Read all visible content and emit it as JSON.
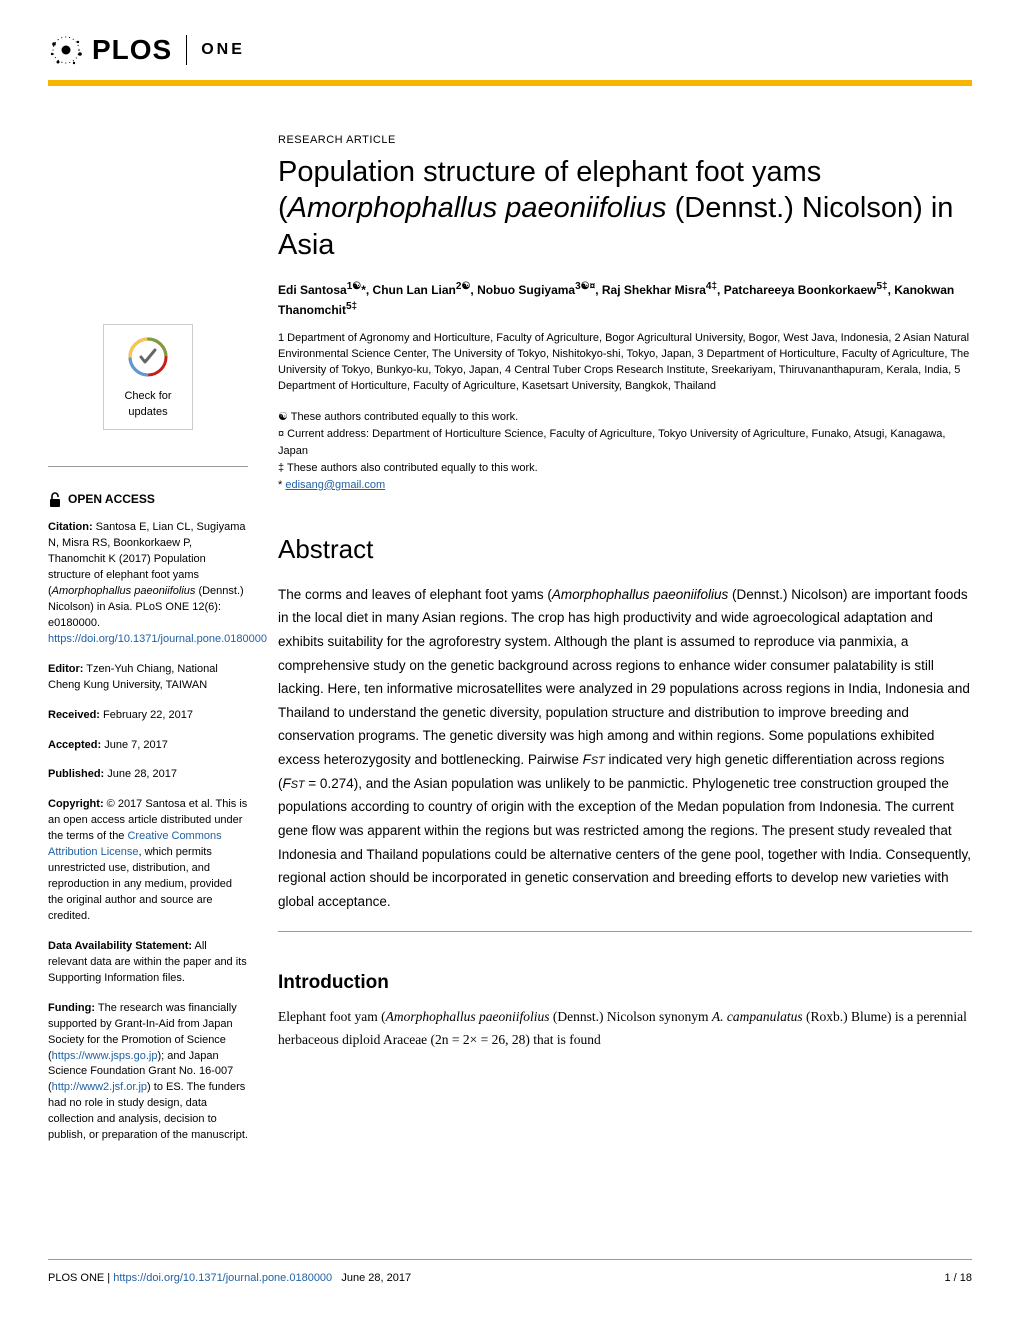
{
  "journal": {
    "name": "PLOS",
    "sub": "ONE"
  },
  "article": {
    "type": "RESEARCH ARTICLE",
    "title_line1": "Population structure of elephant foot yams",
    "title_line2_pre": "(",
    "title_line2_species": "Amorphophallus paeoniifolius",
    "title_line2_post": " (Dennst.) Nicolson) in Asia",
    "authors_html": "Edi Santosa<sup>1☯</sup>*, Chun Lan Lian<sup>2☯</sup>, Nobuo Sugiyama<sup>3☯¤</sup>, Raj Shekhar Misra<sup>4‡</sup>, Patchareeya Boonkorkaew<sup>5‡</sup>, Kanokwan Thanomchit<sup>5‡</sup>",
    "affiliations": "1 Department of Agronomy and Horticulture, Faculty of Agriculture, Bogor Agricultural University, Bogor, West Java, Indonesia, 2 Asian Natural Environmental Science Center, The University of Tokyo, Nishitokyo-shi, Tokyo, Japan, 3 Department of Horticulture, Faculty of Agriculture, The University of Tokyo, Bunkyo-ku, Tokyo, Japan, 4 Central Tuber Crops Research Institute, Sreekariyam, Thiruvananthapuram, Kerala, India, 5 Department of Horticulture, Faculty of Agriculture, Kasetsart University, Bangkok, Thailand",
    "note_equal1": "☯ These authors contributed equally to this work.",
    "note_current": "¤ Current address: Department of Horticulture Science, Faculty of Agriculture, Tokyo University of Agriculture, Funako, Atsugi, Kanagawa, Japan",
    "note_equal2": "‡ These authors also contributed equally to this work.",
    "email": "edisang@gmail.com",
    "abstract_heading": "Abstract",
    "abstract_pre": "The corms and leaves of elephant foot yams (",
    "abstract_species": "Amorphophallus paeoniifolius",
    "abstract_mid1": " (Dennst.) Nicolson) are important foods in the local diet in many Asian regions. The crop has high productivity and wide agroecological adaptation and exhibits suitability for the agroforestry system. Although the plant is assumed to reproduce via panmixia, a comprehensive study on the genetic background across regions to enhance wider consumer palatability is still lacking. Here, ten informative microsatellites were analyzed in 29 populations across regions in India, Indonesia and Thailand to understand the genetic diversity, population structure and distribution to improve breeding and conservation programs. The genetic diversity was high among and within regions. Some populations exhibited excess heterozygosity and bottlenecking. Pairwise ",
    "abstract_fst1": "F",
    "abstract_fst1sub": "ST",
    "abstract_mid2": " indicated very high genetic differentiation across regions (",
    "abstract_fst2": "F",
    "abstract_fst2sub": "ST",
    "abstract_mid3": " = 0.274), and the Asian population was unlikely to be panmictic. Phylogenetic tree construction grouped the populations according to country of origin with the exception of the Medan population from Indonesia. The current gene flow was apparent within the regions but was restricted among the regions. The present study revealed that Indonesia and Thailand populations could be alternative centers of the gene pool, together with India. Consequently, regional action should be incorporated in genetic conservation and breeding efforts to develop new varieties with global acceptance.",
    "intro_heading": "Introduction",
    "intro_pre": "Elephant foot yam (",
    "intro_species1": "Amorphophallus paeoniifolius",
    "intro_mid1": " (Dennst.) Nicolson synonym ",
    "intro_species2": "A. campanulatus",
    "intro_post": " (Roxb.) Blume) is a perennial herbaceous diploid Araceae (2n = 2× = 26, 28) that is found"
  },
  "sidebar": {
    "check_updates_line1": "Check for",
    "check_updates_line2": "updates",
    "open_access": "OPEN ACCESS",
    "citation_label": "Citation:",
    "citation_text_pre": " Santosa E, Lian CL, Sugiyama N, Misra RS, Boonkorkaew P, Thanomchit K (2017) Population structure of elephant foot yams (",
    "citation_species": "Amorphophallus paeoniifolius",
    "citation_text_post": " (Dennst.) Nicolson) in Asia. PLoS ONE 12(6): e0180000. ",
    "citation_doi": "https://doi.org/10.1371/journal.pone.0180000",
    "editor_label": "Editor:",
    "editor_text": " Tzen-Yuh Chiang, National Cheng Kung University, TAIWAN",
    "received_label": "Received:",
    "received_text": " February 22, 2017",
    "accepted_label": "Accepted:",
    "accepted_text": " June 7, 2017",
    "published_label": "Published:",
    "published_text": " June 28, 2017",
    "copyright_label": "Copyright:",
    "copyright_pre": " © 2017 Santosa et al. This is an open access article distributed under the terms of the ",
    "copyright_link": "Creative Commons Attribution License",
    "copyright_post": ", which permits unrestricted use, distribution, and reproduction in any medium, provided the original author and source are credited.",
    "data_label": "Data Availability Statement:",
    "data_text": " All relevant data are within the paper and its Supporting Information files.",
    "funding_label": "Funding:",
    "funding_pre": " The research was financially supported by Grant-In-Aid from Japan Society for the Promotion of Science (",
    "funding_link1": "https://www.jsps.go.jp",
    "funding_mid": "); and Japan Science Foundation Grant No. 16-007 (",
    "funding_link2": "http://www2.jsf.or.jp",
    "funding_post": ") to ES. The funders had no role in study design, data collection and analysis, decision to publish, or preparation of the manuscript."
  },
  "footer": {
    "journal": "PLOS ONE | ",
    "doi": "https://doi.org/10.1371/journal.pone.0180000",
    "date": "June 28, 2017",
    "page": "1 / 18"
  },
  "colors": {
    "accent": "#f7b500",
    "link": "#2162a5",
    "text": "#000000",
    "background": "#ffffff"
  }
}
